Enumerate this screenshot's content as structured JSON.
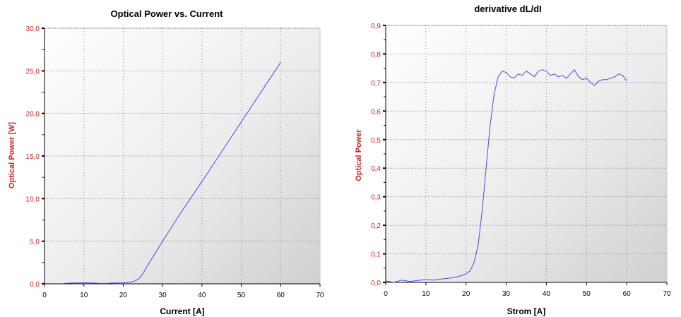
{
  "chart_data": [
    {
      "type": "line",
      "title": "Optical Power vs. Current",
      "xlabel": "Current [A]",
      "ylabel": "Optical Power [W]",
      "xlim": [
        0,
        70
      ],
      "ylim": [
        0,
        30
      ],
      "xticks": [
        0,
        10,
        20,
        30,
        40,
        50,
        60,
        70
      ],
      "xtick_labels": [
        "0",
        "10",
        "20",
        "30",
        "40",
        "50",
        "60",
        "70"
      ],
      "yticks": [
        0,
        5,
        10,
        15,
        20,
        25,
        30
      ],
      "ytick_labels": [
        "0,0",
        "5,0",
        "10,0",
        "15,0",
        "20,0",
        "25,0",
        "30,0"
      ],
      "grid": true,
      "line_color": "#4a4ae0",
      "background": "gradient-white-to-grey",
      "series": [
        {
          "x": [
            5,
            8,
            10,
            12,
            14,
            16,
            17,
            18,
            19,
            20,
            21,
            22,
            23,
            24,
            25,
            26,
            28,
            30,
            35,
            40,
            45,
            50,
            55,
            60
          ],
          "y": [
            0.05,
            0.1,
            0.12,
            0.1,
            0.05,
            0.05,
            0.08,
            0.1,
            0.1,
            0.12,
            0.15,
            0.2,
            0.35,
            0.6,
            1.2,
            2.0,
            3.5,
            5.0,
            8.6,
            12.0,
            15.5,
            19.0,
            22.5,
            26.0
          ]
        }
      ]
    },
    {
      "type": "line",
      "title": "derivative  dL/dI",
      "xlabel": "Strom [A]",
      "ylabel": "Optical Power",
      "xlim": [
        0,
        70
      ],
      "ylim": [
        0,
        0.9
      ],
      "xticks": [
        0,
        10,
        20,
        30,
        40,
        50,
        60,
        70
      ],
      "xtick_labels": [
        "0",
        "10",
        "20",
        "30",
        "40",
        "50",
        "60",
        "70"
      ],
      "yticks": [
        0,
        0.1,
        0.2,
        0.3,
        0.4,
        0.5,
        0.6,
        0.7,
        0.8,
        0.9
      ],
      "ytick_labels": [
        "0,0",
        "0,1",
        "0,2",
        "0,3",
        "0,4",
        "0,5",
        "0,6",
        "0,7",
        "0,8",
        "0,9"
      ],
      "grid": true,
      "line_color": "#4a4ae0",
      "background": "gradient-white-to-grey",
      "series": [
        {
          "x": [
            0,
            2,
            4,
            6,
            8,
            10,
            12,
            14,
            16,
            18,
            19,
            20,
            21,
            22,
            23,
            24,
            25,
            26,
            27,
            28,
            29,
            30,
            31,
            32,
            33,
            34,
            35,
            36,
            37,
            38,
            39,
            40,
            41,
            42,
            43,
            44,
            45,
            46,
            47,
            48,
            49,
            50,
            51,
            52,
            53,
            54,
            55,
            56,
            57,
            58,
            59,
            60
          ],
          "y": [
            0.005,
            0.0,
            0.008,
            0.003,
            0.007,
            0.01,
            0.008,
            0.012,
            0.015,
            0.02,
            0.025,
            0.03,
            0.04,
            0.07,
            0.13,
            0.25,
            0.4,
            0.55,
            0.66,
            0.72,
            0.74,
            0.735,
            0.72,
            0.715,
            0.73,
            0.725,
            0.74,
            0.73,
            0.72,
            0.74,
            0.745,
            0.74,
            0.725,
            0.73,
            0.72,
            0.725,
            0.715,
            0.73,
            0.745,
            0.72,
            0.71,
            0.715,
            0.7,
            0.69,
            0.705,
            0.71,
            0.71,
            0.715,
            0.72,
            0.73,
            0.725,
            0.705
          ]
        }
      ]
    }
  ]
}
